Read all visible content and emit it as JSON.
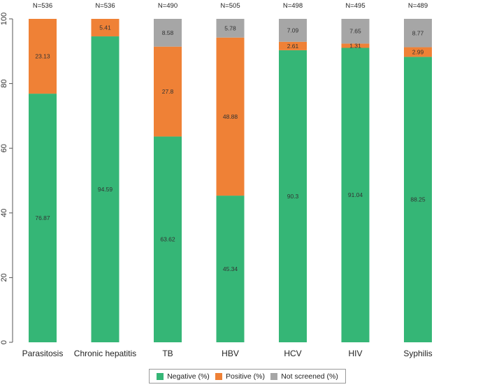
{
  "chart_data": {
    "type": "bar",
    "stacked": true,
    "categories": [
      "Parasitosis",
      "Chronic hepatitis",
      "TB",
      "HBV",
      "HCV",
      "HIV",
      "Syphilis"
    ],
    "n_labels": [
      "N=536",
      "N=536",
      "N=490",
      "N=505",
      "N=498",
      "N=495",
      "N=489"
    ],
    "series": [
      {
        "name": "Negative (%)",
        "color": "#35b676",
        "values": [
          76.87,
          94.59,
          63.62,
          45.34,
          90.3,
          91.04,
          88.25
        ],
        "labels": [
          "76.87",
          "94.59",
          "63.62",
          "45.34",
          "90.3",
          "91.04",
          "88.25"
        ]
      },
      {
        "name": "Positive (%)",
        "color": "#ef8136",
        "values": [
          23.13,
          5.41,
          27.8,
          48.88,
          2.61,
          1.31,
          2.99
        ],
        "labels": [
          "23.13",
          "5.41",
          "27.8",
          "48.88",
          "2.61",
          "1.31",
          "2.99"
        ]
      },
      {
        "name": "Not screened (%)",
        "color": "#a6a6a6",
        "values": [
          0,
          0,
          8.58,
          5.78,
          7.09,
          7.65,
          8.77
        ],
        "labels": [
          "",
          "",
          "8.58",
          "5.78",
          "7.09",
          "7.65",
          "8.77"
        ]
      }
    ],
    "yticks": [
      "0",
      "20",
      "40",
      "60",
      "80",
      "100"
    ],
    "ylim": [
      0,
      100
    ],
    "xlabel": "",
    "ylabel": "",
    "legend_position": "bottom-center"
  }
}
